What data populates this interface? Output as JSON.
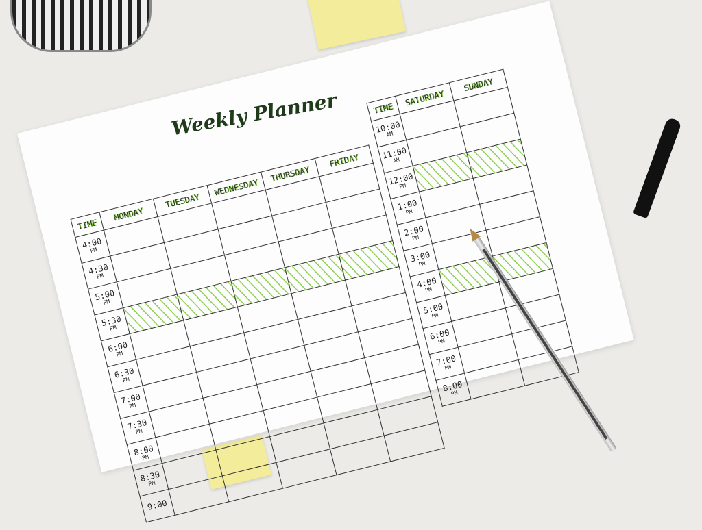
{
  "planner": {
    "title": "Weekly Planner",
    "left_table": {
      "headers": [
        "TIME",
        "MONDAY",
        "TUESDAY",
        "WEDNESDAY",
        "THURSDAY",
        "FRIDAY"
      ],
      "times": [
        [
          "4:00",
          "PM"
        ],
        [
          "4:30",
          "PM"
        ],
        [
          "5:00",
          "PM"
        ],
        [
          "5:30",
          "PM"
        ],
        [
          "6:00",
          "PM"
        ],
        [
          "6:30",
          "PM"
        ],
        [
          "7:00",
          "PM"
        ],
        [
          "7:30",
          "PM"
        ],
        [
          "8:00",
          "PM"
        ],
        [
          "8:30",
          "PM"
        ],
        [
          "9:00",
          ""
        ]
      ],
      "hatched_row": "5:30"
    },
    "right_table": {
      "headers": [
        "TIME",
        "SATURDAY",
        "SUNDAY"
      ],
      "times": [
        [
          "10:00",
          "AM"
        ],
        [
          "11:00",
          "AM"
        ],
        [
          "12:00",
          "PM"
        ],
        [
          "1:00",
          "PM"
        ],
        [
          "2:00",
          "PM"
        ],
        [
          "3:00",
          "PM"
        ],
        [
          "4:00",
          "PM"
        ],
        [
          "5:00",
          "PM"
        ],
        [
          "6:00",
          "PM"
        ],
        [
          "7:00",
          "PM"
        ],
        [
          "8:00",
          "PM"
        ]
      ],
      "hatched_rows": [
        "12:00",
        "4:00"
      ]
    },
    "accent_color": "#8ccf4f"
  }
}
